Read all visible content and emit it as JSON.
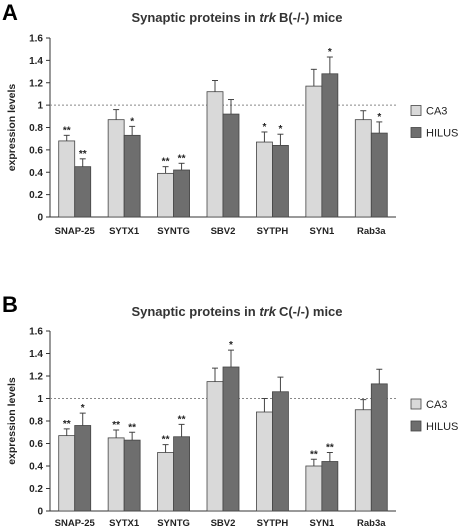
{
  "chart_data": [
    {
      "panel": "A",
      "type": "bar",
      "title_prefix": "Synaptic proteins in ",
      "title_italic": "trk",
      "title_suffix": "B(-/-) mice",
      "ylabel": "expression levels",
      "xlabel": "",
      "ylim": [
        0,
        1.6
      ],
      "yticks": [
        "0",
        "0.2",
        "0.4",
        "0.6",
        "0.8",
        "1",
        "1.2",
        "1.4",
        "1.6"
      ],
      "reference_line": 1,
      "categories": [
        "SNAP-25",
        "SYTX1",
        "SYNTG",
        "SBV2",
        "SYTPH",
        "SYN1",
        "Rab3a"
      ],
      "series": [
        {
          "name": "CA3",
          "color": "#d9d9d9",
          "values": [
            0.68,
            0.87,
            0.39,
            1.12,
            0.67,
            1.17,
            0.87
          ],
          "errors": [
            0.05,
            0.09,
            0.06,
            0.1,
            0.09,
            0.15,
            0.08
          ],
          "significance": [
            "**",
            "",
            "**",
            "",
            "*",
            "",
            ""
          ]
        },
        {
          "name": "HILUS",
          "color": "#6e6e6e",
          "values": [
            0.45,
            0.73,
            0.42,
            0.92,
            0.64,
            1.28,
            0.75
          ],
          "errors": [
            0.07,
            0.08,
            0.06,
            0.13,
            0.1,
            0.15,
            0.1
          ],
          "significance": [
            "**",
            "*",
            "**",
            "",
            "*",
            "*",
            "*"
          ]
        }
      ],
      "legend_position": "right"
    },
    {
      "panel": "B",
      "type": "bar",
      "title_prefix": "Synaptic proteins in ",
      "title_italic": "trk",
      "title_suffix": "C(-/-) mice",
      "ylabel": "expression levels",
      "xlabel": "",
      "ylim": [
        0,
        1.6
      ],
      "yticks": [
        "0",
        "0.2",
        "0.4",
        "0.6",
        "0.8",
        "1",
        "1.2",
        "1.4",
        "1.6"
      ],
      "reference_line": 1,
      "categories": [
        "SNAP-25",
        "SYTX1",
        "SYNTG",
        "SBV2",
        "SYTPH",
        "SYN1",
        "Rab3a"
      ],
      "series": [
        {
          "name": "CA3",
          "color": "#d9d9d9",
          "values": [
            0.67,
            0.65,
            0.52,
            1.15,
            0.88,
            0.4,
            0.9
          ],
          "errors": [
            0.06,
            0.07,
            0.07,
            0.12,
            0.12,
            0.06,
            0.09
          ],
          "significance": [
            "**",
            "**",
            "**",
            "",
            "",
            "**",
            ""
          ]
        },
        {
          "name": "HILUS",
          "color": "#6e6e6e",
          "values": [
            0.76,
            0.63,
            0.66,
            1.28,
            1.06,
            0.44,
            1.13
          ],
          "errors": [
            0.11,
            0.07,
            0.11,
            0.15,
            0.13,
            0.08,
            0.13
          ],
          "significance": [
            "*",
            "**",
            "**",
            "*",
            "",
            "**",
            ""
          ]
        }
      ],
      "legend_position": "right"
    }
  ]
}
